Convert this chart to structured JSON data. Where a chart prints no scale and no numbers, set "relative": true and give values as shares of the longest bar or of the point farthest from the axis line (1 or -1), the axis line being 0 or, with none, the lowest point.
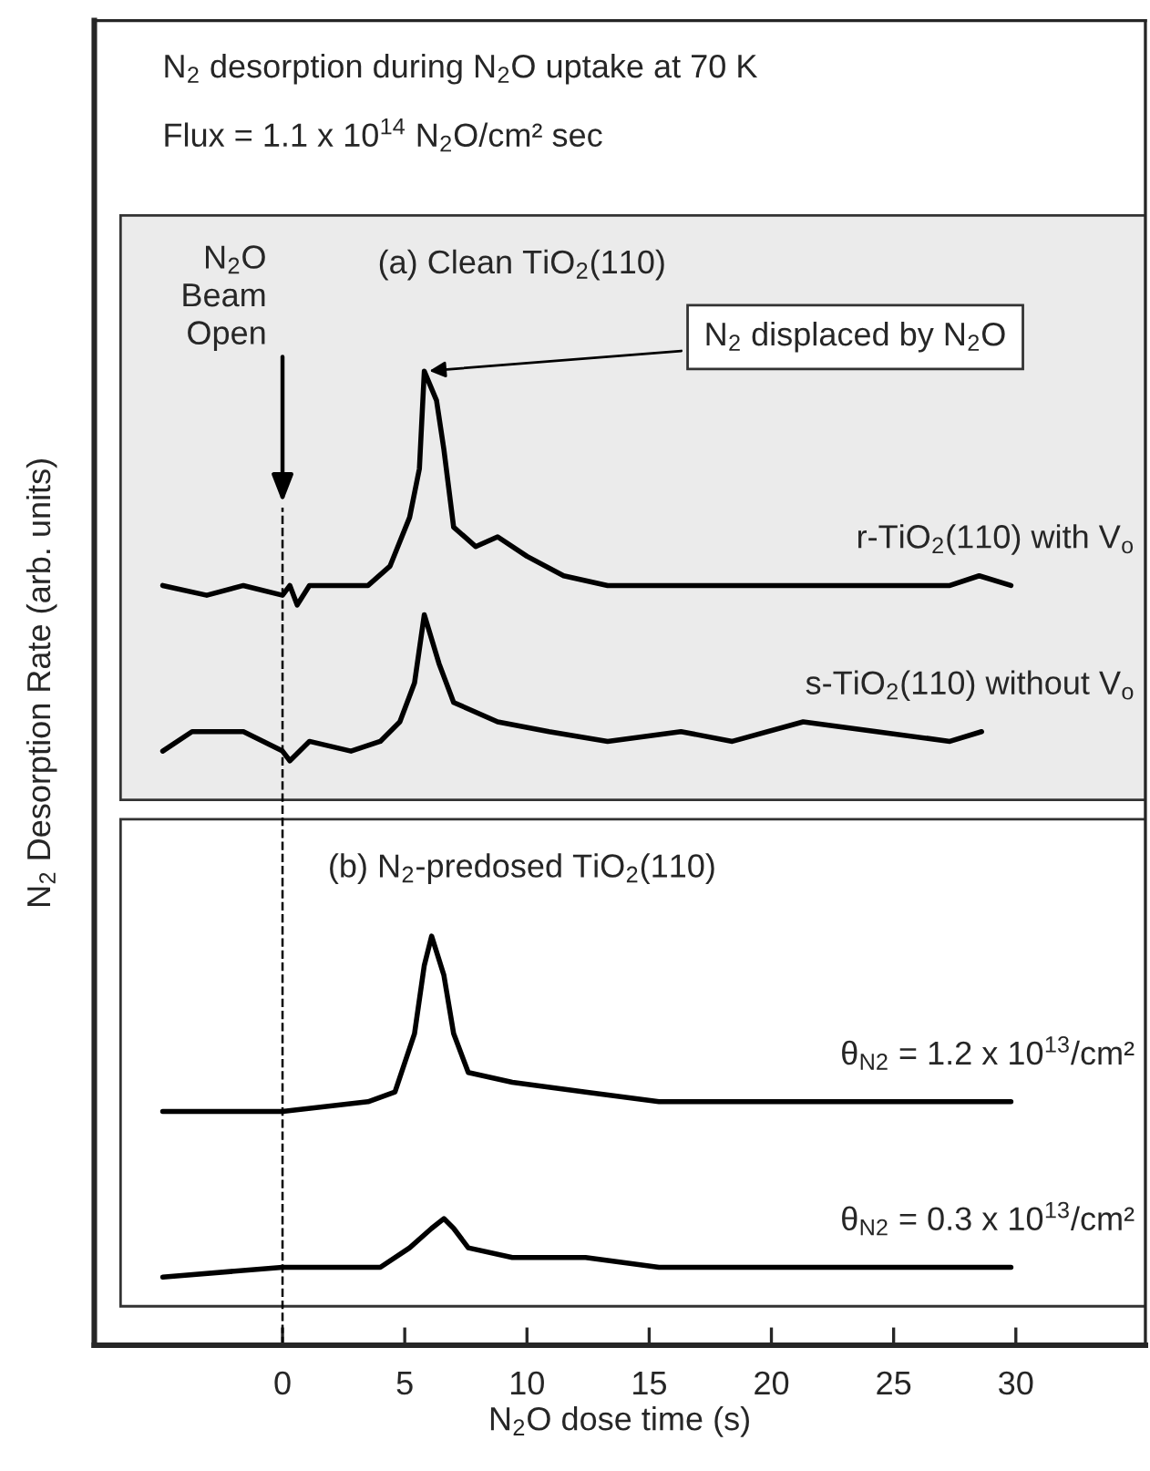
{
  "chart_data": {
    "type": "line",
    "relative": true,
    "title": "N$_{2}$ desorption during N$_{2}$O uptake at 70 K",
    "subtitle": "Flux = 1.1 x 10$^{14}$ N$_{2}$O/cm² sec",
    "xlabel": "N$_{2}$O dose time (s)",
    "ylabel": "N$_{2}$ Desorption Rate (arb. units)",
    "xlim": [
      -7.7,
      35.3
    ],
    "xticks": [
      0,
      5,
      10,
      15,
      20,
      25,
      30
    ],
    "tick_labels": "x",
    "grid": false,
    "legend": false,
    "marker": "none",
    "line_style": "solid",
    "series": [
      {
        "name": "r-TiO$_{2}$(110) with V$_{o}$",
        "color": "#000000",
        "x": [
          -4.9,
          -3.1,
          -1.6,
          0,
          0.3,
          0.6,
          1.1,
          2.6,
          3.5,
          4.4,
          5.2,
          5.6,
          5.8,
          6.3,
          6.6,
          7.0,
          7.9,
          8.8,
          10.0,
          11.5,
          13.3,
          15.4,
          18.4,
          21.3,
          24.3,
          27.3,
          28.5,
          29.8
        ],
        "values": [
          0.78,
          0.77,
          0.78,
          0.77,
          0.78,
          0.76,
          0.78,
          0.78,
          0.78,
          0.8,
          0.85,
          0.9,
          1.0,
          0.97,
          0.92,
          0.84,
          0.82,
          0.83,
          0.81,
          0.79,
          0.78,
          0.78,
          0.78,
          0.78,
          0.78,
          0.78,
          0.79,
          0.78
        ]
      },
      {
        "name": "s-TiO$_{2}$(110) without V$_{o}$",
        "color": "#000000",
        "x": [
          -4.9,
          -3.7,
          -1.6,
          0,
          0.3,
          1.1,
          2.8,
          4.0,
          4.8,
          5.4,
          5.8,
          6.4,
          7.0,
          8.8,
          10.9,
          13.3,
          16.3,
          18.4,
          21.3,
          24.3,
          27.3,
          28.6
        ],
        "values": [
          0.61,
          0.63,
          0.63,
          0.61,
          0.6,
          0.62,
          0.61,
          0.62,
          0.64,
          0.68,
          0.75,
          0.7,
          0.66,
          0.64,
          0.63,
          0.62,
          0.63,
          0.62,
          0.64,
          0.63,
          0.62,
          0.63
        ]
      },
      {
        "name": "θ$_{N2}$ = 1.2 x 10$^{13}$/cm²",
        "color": "#000000",
        "x": [
          -4.9,
          0,
          3.5,
          4.6,
          5.4,
          5.8,
          6.1,
          6.6,
          7.0,
          7.6,
          9.4,
          12.4,
          15.4,
          18.4,
          21.3,
          24.3,
          27.3,
          29.8
        ],
        "values": [
          0.24,
          0.24,
          0.25,
          0.26,
          0.32,
          0.39,
          0.42,
          0.38,
          0.32,
          0.28,
          0.27,
          0.26,
          0.25,
          0.25,
          0.25,
          0.25,
          0.25,
          0.25
        ]
      },
      {
        "name": "θ$_{N2}$ = 0.3 x 10$^{13}$/cm²",
        "color": "#000000",
        "x": [
          -4.9,
          0,
          4.0,
          5.2,
          6.1,
          6.6,
          7.0,
          7.6,
          9.4,
          12.4,
          15.4,
          18.4,
          21.3,
          24.3,
          27.3,
          29.8
        ],
        "values": [
          0.07,
          0.08,
          0.08,
          0.1,
          0.12,
          0.13,
          0.12,
          0.1,
          0.09,
          0.09,
          0.08,
          0.08,
          0.08,
          0.08,
          0.08,
          0.08
        ]
      }
    ],
    "bands": [
      {
        "axis": "y",
        "from": 0.56,
        "to": 1.16,
        "label": "(a) Clean TiO$_{2}$(110)",
        "color": "#ebebeb"
      },
      {
        "axis": "y",
        "from": 0.04,
        "to": 0.54,
        "label": "(b) N$_{2}$-predosed TiO$_{2}$(110)",
        "color": "#ffffff"
      }
    ],
    "ref_lines": [
      {
        "axis": "x",
        "value": 0,
        "label": "N$_{2}$O\nBeam\nOpen",
        "line_style": "dashed",
        "color": "#000000"
      }
    ],
    "annotations": [
      {
        "text": "N$_{2}$ displaced by N$_{2}$O",
        "x": 5.8,
        "y": 1.0
      }
    ]
  }
}
